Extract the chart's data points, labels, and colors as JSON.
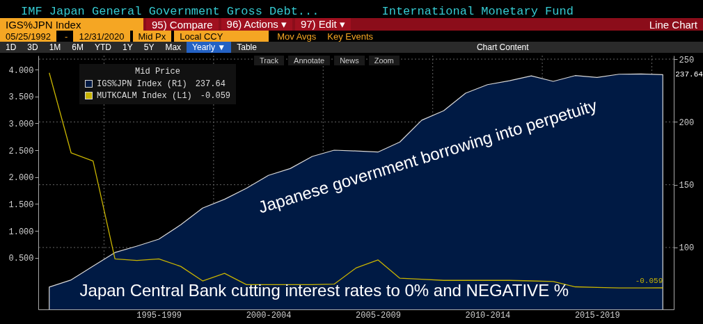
{
  "chart_data": {
    "type": "area",
    "title": "IMF Japan General Government Gross Debt...",
    "subtitle": "International Monetary Fund",
    "legend_title": "Mid Price",
    "legend": "top left",
    "grid": true,
    "categories": [
      null,
      null,
      null,
      null,
      null,
      "1995-1999",
      null,
      null,
      null,
      null,
      "2000-2004",
      null,
      null,
      null,
      null,
      "2005-2009",
      null,
      null,
      null,
      null,
      "2010-2014",
      null,
      null,
      null,
      null,
      "2015-2019",
      null,
      null,
      null
    ],
    "ylim": [
      -0.46,
      4.26
    ],
    "yticks": [
      {
        "value": 0.5,
        "label": "0.500"
      },
      {
        "value": 1,
        "label": "1.000"
      },
      {
        "value": 1.5,
        "label": "1.500"
      },
      {
        "value": 2,
        "label": "2.000"
      },
      {
        "value": 2.5,
        "label": "2.500"
      },
      {
        "value": 3,
        "label": "3.000"
      },
      {
        "value": 3.5,
        "label": "3.500"
      },
      {
        "value": 4,
        "label": "4.000"
      }
    ],
    "y2lim": [
      50.7,
      252.8
    ],
    "y2ticks": [
      {
        "value": 100,
        "label": "100"
      },
      {
        "value": 150,
        "label": "150"
      },
      {
        "value": 200,
        "label": "200"
      },
      {
        "value": 250,
        "label": "250"
      }
    ],
    "series": [
      {
        "name": "IGS%JPN Index (R1)",
        "axis": "y2",
        "color": "#001a44",
        "values": [
          68.5,
          74.2,
          85.2,
          96.0,
          101.1,
          106.6,
          118.1,
          131.4,
          138.4,
          147.2,
          157.4,
          162.9,
          172.5,
          177.5,
          176.9,
          176.0,
          184.0,
          201.4,
          208.9,
          222.9,
          229.7,
          232.8,
          236.7,
          232.3,
          236.9,
          235.4,
          238.0,
          238.2,
          237.64
        ],
        "value_labels": [
          null,
          null,
          null,
          null,
          null,
          null,
          null,
          null,
          null,
          null,
          null,
          null,
          null,
          null,
          null,
          null,
          null,
          null,
          null,
          null,
          null,
          null,
          null,
          null,
          null,
          null,
          null,
          null,
          "237.64"
        ]
      },
      {
        "name": "MUTKCALM Index (L1)",
        "type": "line",
        "color": "#c8b400",
        "values": [
          3.94,
          2.45,
          2.3,
          0.48,
          0.45,
          0.48,
          0.34,
          0.07,
          0.21,
          0.0,
          0.0,
          0.0,
          0.0,
          0.01,
          0.31,
          0.46,
          0.12,
          0.1,
          0.08,
          0.08,
          0.08,
          0.08,
          0.07,
          0.06,
          -0.04,
          -0.05,
          -0.06,
          -0.06,
          -0.059
        ],
        "value_labels": [
          null,
          null,
          null,
          null,
          null,
          null,
          null,
          null,
          null,
          null,
          null,
          null,
          null,
          null,
          null,
          null,
          null,
          null,
          null,
          null,
          null,
          null,
          null,
          null,
          null,
          null,
          null,
          null,
          "-0.059"
        ]
      }
    ],
    "annotations": [
      "Japanese government borrowing into perpetuity",
      "Japan Central Bank cutting interest rates to 0% and NEGATIVE %",
      "Track",
      "Annotate",
      "News",
      "Zoom",
      "IGS%JPN Index",
      "95) Compare",
      "96) Actions ▾",
      "97) Edit ▾",
      "Line Chart",
      "05/25/1992",
      "-",
      "12/31/2020",
      "Mid Px",
      "Local CCY",
      "Mov Avgs",
      "Key Events",
      "1D",
      "3D",
      "1M",
      "6M",
      "YTD",
      "1Y",
      "5Y",
      "Max",
      "Yearly ▼",
      "Table",
      "Chart Content"
    ]
  }
}
